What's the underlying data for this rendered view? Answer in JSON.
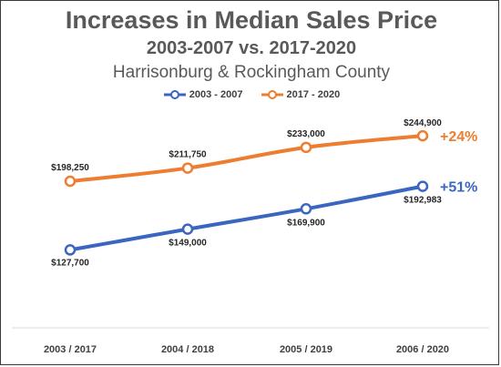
{
  "chart_data": {
    "type": "line",
    "title": "Increases in Median Sales Price",
    "subtitle": "2003-2007 vs. 2017-2020",
    "subtitle2": "Harrisonburg & Rockingham County",
    "categories": [
      "2003 / 2017",
      "2004 / 2018",
      "2005 / 2019",
      "2006 / 2020"
    ],
    "series": [
      {
        "name": "2003 - 2007",
        "color": "#3a66c1",
        "values": [
          127700,
          149000,
          169900,
          192983
        ],
        "labels": [
          "$127,700",
          "$149,000",
          "$169,900",
          "$192,983"
        ],
        "change": "+51%"
      },
      {
        "name": "2017 - 2020",
        "color": "#ed7d31",
        "values": [
          198250,
          211750,
          233000,
          244900
        ],
        "labels": [
          "$198,250",
          "$211,750",
          "$233,000",
          "$244,900"
        ],
        "change": "+24%"
      }
    ],
    "ylim": [
      100000,
      260000
    ],
    "grid": false,
    "legend": "top-center"
  }
}
